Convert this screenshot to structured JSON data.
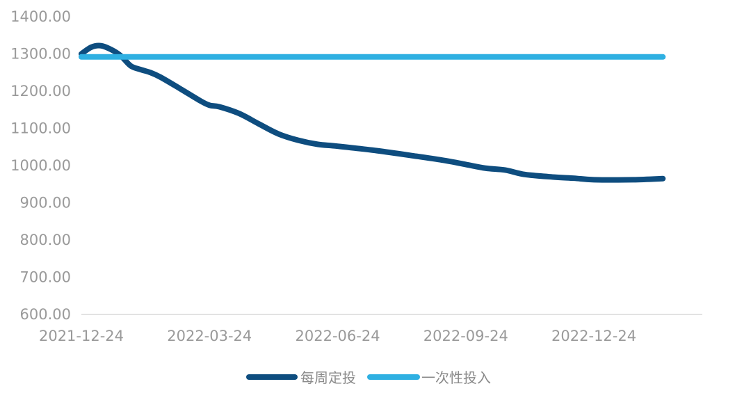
{
  "chart_data": {
    "type": "line",
    "title": "",
    "xlabel": "",
    "ylabel": "",
    "ylim": [
      600,
      1400
    ],
    "y_ticks": [
      600,
      700,
      800,
      900,
      1000,
      1100,
      1200,
      1300,
      1400
    ],
    "y_tick_labels": [
      "600.00",
      "700.00",
      "800.00",
      "900.00",
      "1000.00",
      "1100.00",
      "1200.00",
      "1300.00",
      "1400.00"
    ],
    "x_range": [
      0,
      63
    ],
    "x_ticks": [
      {
        "x": 0,
        "label": "2021-12-24"
      },
      {
        "x": 13,
        "label": "2022-03-24"
      },
      {
        "x": 26,
        "label": "2022-06-24"
      },
      {
        "x": 39,
        "label": "2022-09-24"
      },
      {
        "x": 52,
        "label": "2022-12-24"
      }
    ],
    "grid": false,
    "legend_position": "bottom",
    "series": [
      {
        "name": "每周定投",
        "color": "#0e4d7f",
        "x": [
          0,
          1,
          2,
          3,
          4,
          5,
          6,
          7,
          8,
          10,
          12,
          13,
          14,
          16,
          18,
          20,
          22,
          24,
          26,
          30,
          34,
          37,
          39,
          41,
          43,
          45,
          48,
          50,
          52,
          56,
          59
        ],
        "y": [
          1300,
          1318,
          1322,
          1312,
          1295,
          1268,
          1258,
          1250,
          1238,
          1207,
          1175,
          1162,
          1158,
          1140,
          1112,
          1085,
          1068,
          1057,
          1052,
          1040,
          1025,
          1013,
          1003,
          993,
          988,
          976,
          969,
          966,
          962,
          962,
          965
        ]
      },
      {
        "name": "一次性投入",
        "color": "#2fb0e2",
        "x": [
          0,
          59
        ],
        "y": [
          1292,
          1292
        ]
      }
    ]
  }
}
